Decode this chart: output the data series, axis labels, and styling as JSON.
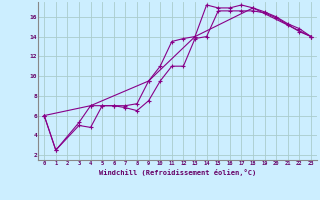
{
  "xlabel": "Windchill (Refroidissement éolien,°C)",
  "background_color": "#cceeff",
  "grid_color": "#aacccc",
  "line_color": "#880088",
  "ylim": [
    1.5,
    17.5
  ],
  "xlim": [
    -0.5,
    23.5
  ],
  "yticks": [
    2,
    4,
    6,
    8,
    10,
    12,
    14,
    16
  ],
  "xticks": [
    0,
    1,
    2,
    3,
    4,
    5,
    6,
    7,
    8,
    9,
    10,
    11,
    12,
    13,
    14,
    15,
    16,
    17,
    18,
    19,
    20,
    21,
    22,
    23
  ],
  "line1_x": [
    0,
    1,
    3,
    4,
    5,
    6,
    7,
    8,
    9,
    10,
    11,
    12,
    13,
    14,
    15,
    16,
    17,
    18,
    19,
    20,
    21,
    22,
    23
  ],
  "line1_y": [
    6.0,
    2.5,
    5.3,
    7.0,
    7.0,
    7.0,
    7.0,
    7.2,
    9.5,
    11.0,
    13.5,
    13.8,
    14.0,
    17.2,
    16.9,
    16.9,
    17.2,
    16.9,
    16.5,
    16.0,
    15.3,
    14.8,
    14.0
  ],
  "line2_x": [
    0,
    1,
    3,
    4,
    5,
    6,
    7,
    8,
    9,
    10,
    11,
    12,
    13,
    14,
    15,
    16,
    17,
    18,
    19,
    20,
    21,
    22,
    23
  ],
  "line2_y": [
    6.0,
    2.5,
    5.0,
    4.8,
    7.0,
    7.0,
    6.8,
    6.5,
    7.5,
    9.5,
    11.0,
    11.0,
    13.8,
    14.0,
    16.6,
    16.6,
    16.6,
    16.6,
    16.4,
    15.9,
    15.2,
    14.5,
    14.0
  ],
  "line3_x": [
    0,
    4,
    9,
    13,
    18,
    23
  ],
  "line3_y": [
    6.0,
    7.0,
    9.5,
    14.0,
    16.9,
    14.0
  ]
}
